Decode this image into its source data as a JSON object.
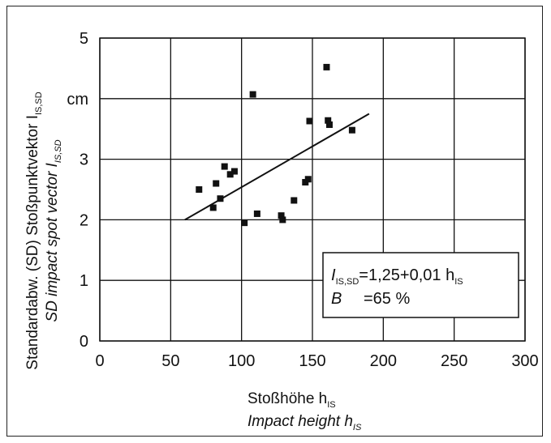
{
  "chart_data": {
    "type": "scatter",
    "x_ticks": [
      "0",
      "50",
      "100",
      "150",
      "200",
      "250",
      "300"
    ],
    "y_ticks": [
      "0",
      "1",
      "2",
      "3",
      "cm",
      "5"
    ],
    "xlim": [
      0,
      300
    ],
    "ylim": [
      0,
      5
    ],
    "grid": true,
    "xlabel_lines": [
      "Stoßhöhe h",
      "Impact height h"
    ],
    "xlabel_subscripts": [
      "IS",
      "IS"
    ],
    "ylabel_lines": [
      "Standardabw. (SD)  Stoßpunktvektor I",
      "SD impact spot vector I"
    ],
    "ylabel_subscripts": [
      "IS,SD",
      "IS,SD"
    ],
    "points": [
      {
        "x": 70,
        "y": 2.5
      },
      {
        "x": 80,
        "y": 2.2
      },
      {
        "x": 82,
        "y": 2.6
      },
      {
        "x": 85,
        "y": 2.35
      },
      {
        "x": 88,
        "y": 2.88
      },
      {
        "x": 92,
        "y": 2.75
      },
      {
        "x": 95,
        "y": 2.8
      },
      {
        "x": 102,
        "y": 1.95
      },
      {
        "x": 108,
        "y": 4.07
      },
      {
        "x": 111,
        "y": 2.1
      },
      {
        "x": 128,
        "y": 2.07
      },
      {
        "x": 129,
        "y": 2.0
      },
      {
        "x": 137,
        "y": 2.32
      },
      {
        "x": 145,
        "y": 2.62
      },
      {
        "x": 147,
        "y": 2.67
      },
      {
        "x": 148,
        "y": 3.63
      },
      {
        "x": 160,
        "y": 4.52
      },
      {
        "x": 161,
        "y": 3.64
      },
      {
        "x": 162,
        "y": 3.57
      },
      {
        "x": 178,
        "y": 3.48
      }
    ],
    "trendline": {
      "x": [
        60,
        190
      ],
      "y": [
        2.0,
        3.75
      ]
    },
    "legend": {
      "line1_sym": "I",
      "line1_sub": "IS,SD",
      "line1_text": "=1,25+0,01 h",
      "line1_sub2": "IS",
      "line2_sym": "B",
      "line2_text": "=65 %"
    }
  }
}
